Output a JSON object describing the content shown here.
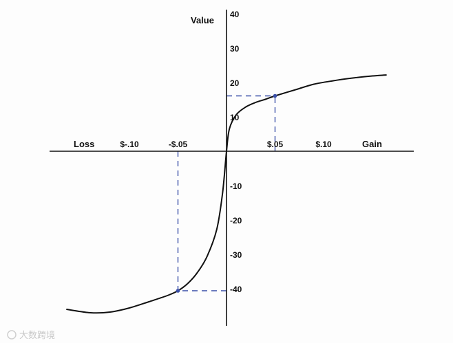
{
  "chart_data": {
    "type": "line",
    "title": "",
    "xlabel_left": "Loss",
    "xlabel_right": "Gain",
    "ylabel": "Value",
    "x_tick_labels": [
      {
        "x": -0.1,
        "label": "$-.10"
      },
      {
        "x": -0.05,
        "label": "-$.05"
      },
      {
        "x": 0.05,
        "label": "$.05"
      },
      {
        "x": 0.1,
        "label": "$.10"
      }
    ],
    "y_tick_labels": [
      {
        "y": 40,
        "label": "40"
      },
      {
        "y": 30,
        "label": "30"
      },
      {
        "y": 20,
        "label": "20"
      },
      {
        "y": 10,
        "label": "10"
      },
      {
        "y": -10,
        "label": "-10"
      },
      {
        "y": -20,
        "label": "-20"
      },
      {
        "y": -30,
        "label": "-30"
      },
      {
        "y": -40,
        "label": "-40"
      }
    ],
    "xlim": [
      -0.18,
      0.19
    ],
    "ylim": [
      -50,
      40
    ],
    "series": [
      {
        "points": [
          [
            -0.165,
            -46
          ],
          [
            -0.14,
            -47
          ],
          [
            -0.12,
            -46.8
          ],
          [
            -0.1,
            -45.6
          ],
          [
            -0.08,
            -43.8
          ],
          [
            -0.06,
            -41.9
          ],
          [
            -0.05,
            -40.6
          ],
          [
            -0.04,
            -38.5
          ],
          [
            -0.03,
            -35.3
          ],
          [
            -0.02,
            -30.6
          ],
          [
            -0.01,
            -22.7
          ],
          [
            -0.004,
            -12
          ],
          [
            0.0,
            0.0
          ],
          [
            0.003,
            6.5
          ],
          [
            0.01,
            10.6
          ],
          [
            0.02,
            12.9
          ],
          [
            0.03,
            14.2
          ],
          [
            0.04,
            15.1
          ],
          [
            0.05,
            16.1
          ],
          [
            0.07,
            17.8
          ],
          [
            0.09,
            19.5
          ],
          [
            0.11,
            20.5
          ],
          [
            0.13,
            21.3
          ],
          [
            0.15,
            21.9
          ],
          [
            0.165,
            22.2
          ]
        ]
      }
    ],
    "reference_points": [
      {
        "x": 0.05,
        "y": 16.1
      },
      {
        "x": -0.05,
        "y": -40.6
      }
    ],
    "colors": {
      "curve": "#111111",
      "axis": "#111111",
      "guide": "#3a4fa8"
    },
    "grid": false
  },
  "watermark": "大数跨境"
}
